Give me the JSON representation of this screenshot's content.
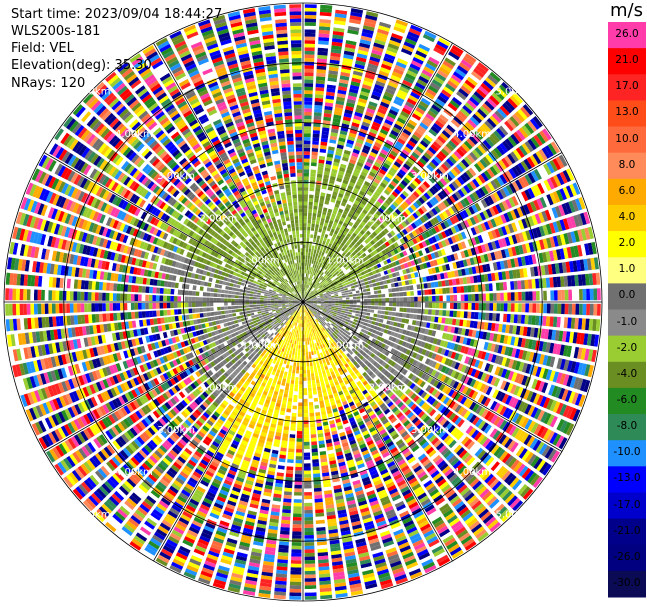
{
  "info": {
    "start_time": "Start time: 2023/09/04 18:44:27",
    "instrument": "WLS200s-181",
    "field": "Field: VEL",
    "elevation": "Elevation(deg): 35.30",
    "nrays": "NRays: 120"
  },
  "chart_data": {
    "type": "heatmap",
    "projection": "polar-ppi",
    "field": "VEL",
    "units": "m/s",
    "nrays": 120,
    "elevation_deg": 35.3,
    "range_rings_km": [
      1.0,
      2.0,
      3.0,
      4.0,
      5.0
    ],
    "range_ring_labels": [
      "1.00km",
      "2.00km",
      "3.00km",
      "4.00km",
      "5.00km"
    ],
    "radial_lines_deg": [
      0,
      30,
      60,
      90,
      120,
      150,
      180,
      210,
      240,
      270,
      300,
      330
    ],
    "max_range_km": 5.0,
    "near_field_pattern": [
      {
        "sector": "north",
        "velocity_range": [
          -4.0,
          -2.0
        ]
      },
      {
        "sector": "east-west",
        "velocity_range": [
          -1.0,
          0.0
        ]
      },
      {
        "sector": "south",
        "velocity_range": [
          2.0,
          4.0
        ]
      }
    ],
    "colorbar": {
      "unit_label": "m/s",
      "tick_labels": [
        "26.0",
        "21.0",
        "17.0",
        "13.0",
        "10.0",
        "8.0",
        "6.0",
        "4.0",
        "2.0",
        "1.0",
        "0.0",
        "-1.0",
        "-2.0",
        "-4.0",
        "-6.0",
        "-8.0",
        "-10.0",
        "-13.0",
        "-17.0",
        "-21.0",
        "-26.0",
        "-30.0"
      ],
      "colors": [
        "#ff3caa",
        "#ff0000",
        "#ff2424",
        "#ff4d1a",
        "#ff6a3c",
        "#ff8a5a",
        "#ffaa00",
        "#ffcc00",
        "#ffff00",
        "#ffff80",
        "#707070",
        "#8a8a8a",
        "#9acd32",
        "#6b8e23",
        "#228b22",
        "#2e8b57",
        "#1e90ff",
        "#0000ff",
        "#0000cd",
        "#00008b",
        "#000080",
        "#0a0a55"
      ]
    }
  }
}
